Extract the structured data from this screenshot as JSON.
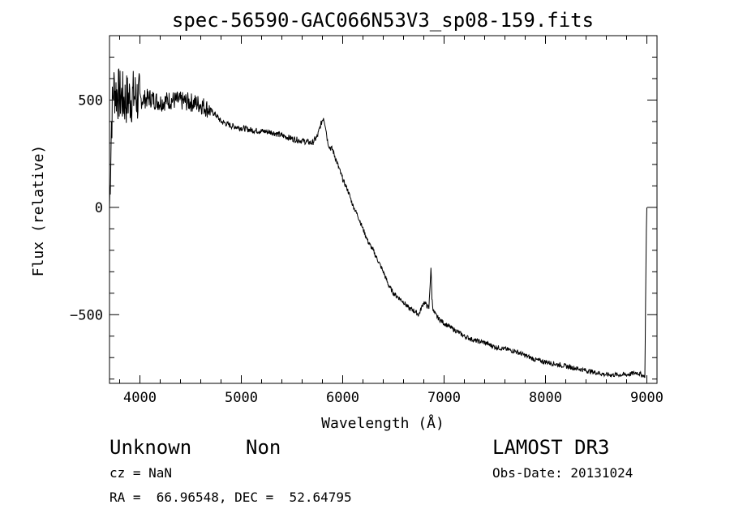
{
  "chart_data": {
    "type": "line",
    "title": "spec-56590-GAC066N53V3_sp08-159.fits",
    "xlabel": "Wavelength (Å)",
    "ylabel": "Flux (relative)",
    "xlim": [
      3700,
      9100
    ],
    "ylim": [
      -820,
      800
    ],
    "x_ticks": [
      4000,
      5000,
      6000,
      7000,
      8000,
      9000
    ],
    "x_tick_labels": [
      "4000",
      "5000",
      "6000",
      "7000",
      "8000",
      "9000"
    ],
    "y_ticks": [
      500,
      0,
      -500
    ],
    "y_tick_labels": [
      "500",
      "0",
      "−500"
    ],
    "series": [
      {
        "name": "flux",
        "x": [
          3700,
          3720,
          3740,
          3760,
          3800,
          3850,
          3900,
          3950,
          4000,
          4100,
          4200,
          4300,
          4400,
          4500,
          4600,
          4700,
          4750,
          4800,
          4900,
          5000,
          5100,
          5200,
          5300,
          5400,
          5500,
          5600,
          5700,
          5750,
          5780,
          5810,
          5830,
          5850,
          5870,
          5900,
          5950,
          6000,
          6050,
          6100,
          6150,
          6200,
          6250,
          6300,
          6350,
          6400,
          6450,
          6500,
          6550,
          6600,
          6650,
          6700,
          6750,
          6800,
          6850,
          6870,
          6880,
          6890,
          6900,
          6950,
          7000,
          7100,
          7200,
          7300,
          7400,
          7500,
          7600,
          7700,
          7800,
          7900,
          8000,
          8100,
          8200,
          8300,
          8400,
          8500,
          8600,
          8700,
          8800,
          8900,
          8950,
          8980,
          8995,
          9000
        ],
        "y": [
          0,
          400,
          560,
          540,
          520,
          500,
          510,
          520,
          500,
          510,
          490,
          500,
          495,
          490,
          480,
          450,
          430,
          400,
          380,
          370,
          360,
          355,
          350,
          335,
          320,
          310,
          300,
          330,
          380,
          420,
          380,
          310,
          280,
          270,
          200,
          130,
          80,
          10,
          -40,
          -100,
          -160,
          -200,
          -250,
          -300,
          -360,
          -400,
          -420,
          -440,
          -470,
          -480,
          -500,
          -440,
          -470,
          -280,
          -420,
          -470,
          -490,
          -520,
          -540,
          -570,
          -600,
          -620,
          -630,
          -650,
          -660,
          -670,
          -690,
          -710,
          -720,
          -730,
          -740,
          -750,
          -760,
          -770,
          -780,
          -780,
          -780,
          -770,
          -780,
          -790,
          -100,
          0
        ]
      }
    ]
  },
  "info": {
    "object_class": "Unknown",
    "subclass": "Non",
    "survey": "LAMOST DR3",
    "redshift": "cz = NaN",
    "obs_date": "Obs-Date: 20131024",
    "coords": "RA =  66.96548, DEC =  52.64795"
  }
}
